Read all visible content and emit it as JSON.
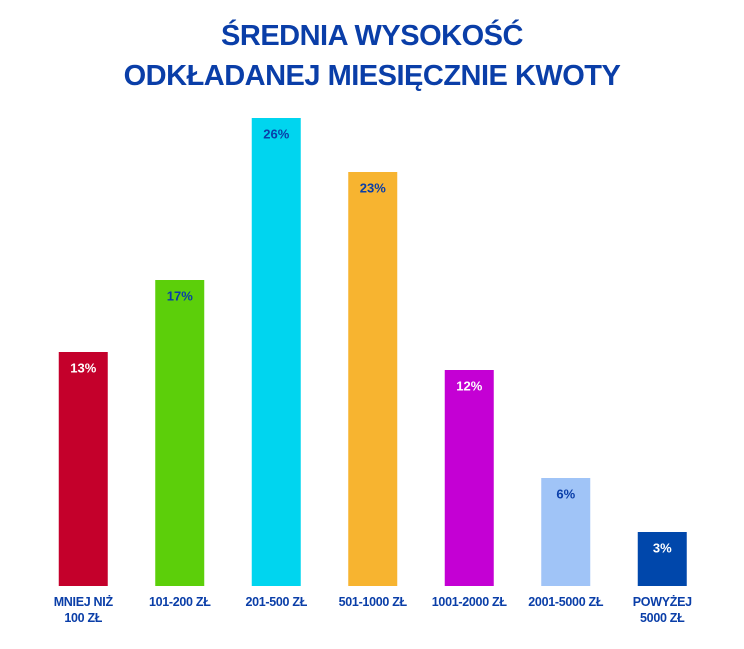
{
  "chart_data": {
    "type": "bar",
    "title": "ŚREDNIA WYSOKOŚĆ\nODKŁADANEJ MIESIĘCZNIE KWOTY",
    "categories": [
      "MNIEJ NIŻ\n100 ZŁ",
      "101-200 ZŁ",
      "201-500 ZŁ",
      "501-1000 ZŁ",
      "1001-2000 ZŁ",
      "2001-5000 ZŁ",
      "POWYŻEJ\n5000 ZŁ"
    ],
    "values": [
      13,
      17,
      26,
      23,
      12,
      6,
      3
    ],
    "value_labels": [
      "13%",
      "17%",
      "26%",
      "23%",
      "12%",
      "6%",
      "3%"
    ],
    "colors": [
      "#c4002b",
      "#5ccf0a",
      "#00d5ef",
      "#f7b430",
      "#c400d4",
      "#a0c4f7",
      "#0047ab"
    ]
  }
}
